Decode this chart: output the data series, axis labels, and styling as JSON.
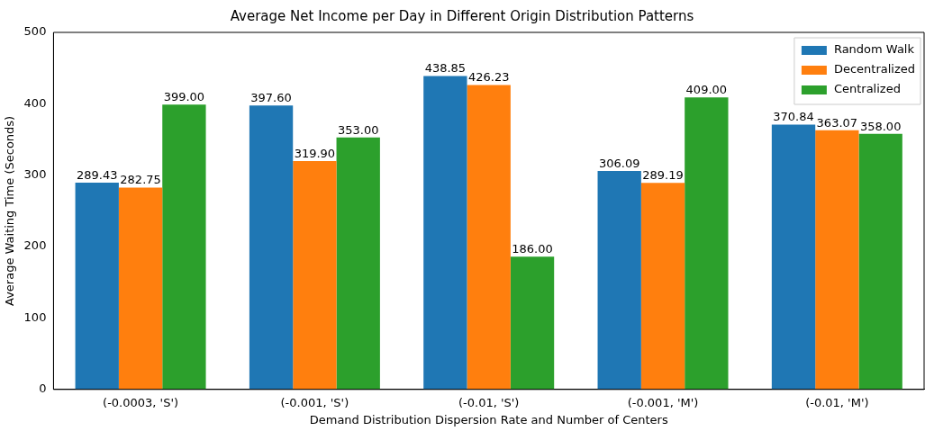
{
  "chart_data": {
    "type": "bar",
    "title": "Average Net Income per Day in Different Origin Distribution Patterns",
    "xlabel": "Demand Distribution Dispersion Rate and Number of Centers",
    "ylabel": "Average Waiting Time (Seconds)",
    "categories": [
      "(-0.0003, 'S')",
      "(-0.001, 'S')",
      "(-0.01, 'S')",
      "(-0.001, 'M')",
      "(-0.01, 'M')"
    ],
    "series": [
      {
        "name": "Random Walk",
        "color": "#1f77b4",
        "values": [
          289.43,
          397.6,
          438.85,
          306.09,
          370.84
        ],
        "value_labels": [
          "289.43",
          "397.60",
          "438.85",
          "306.09",
          "370.84"
        ]
      },
      {
        "name": "Decentralized",
        "color": "#ff7f0e",
        "values": [
          282.75,
          319.9,
          426.23,
          289.19,
          363.07
        ],
        "value_labels": [
          "282.75",
          "319.90",
          "426.23",
          "289.19",
          "363.07"
        ]
      },
      {
        "name": "Centralized",
        "color": "#2ca02c",
        "values": [
          399,
          353,
          186,
          409,
          358
        ],
        "value_labels": [
          "399.00",
          "353.00",
          "186.00",
          "409.00",
          "358.00"
        ]
      }
    ],
    "ylim": [
      0,
      500
    ],
    "yticks": [
      0,
      100,
      200,
      300,
      400,
      500
    ],
    "grid": false,
    "legend": "top right"
  }
}
